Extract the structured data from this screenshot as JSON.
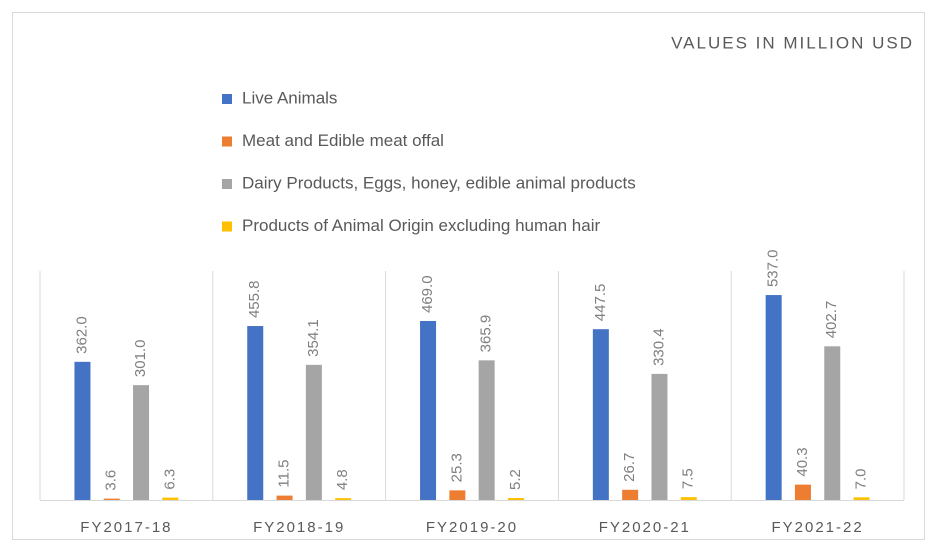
{
  "chart_data": {
    "type": "bar",
    "title": "VALUES IN MILLION USD",
    "categories": [
      "FY2017-18",
      "FY2018-19",
      "FY2019-20",
      "FY2020-21",
      "FY2021-22"
    ],
    "series": [
      {
        "name": "Live Animals",
        "color": "#4472c4",
        "values": [
          362.0,
          455.8,
          469.0,
          447.5,
          537.0
        ],
        "value_labels": [
          "362.0",
          "455.8",
          "469.0",
          "447.5",
          "537.0"
        ]
      },
      {
        "name": "Meat and Edible meat offal",
        "color": "#ed7d31",
        "values": [
          3.6,
          11.5,
          25.3,
          26.7,
          40.3
        ],
        "value_labels": [
          "3.6",
          "11.5",
          "25.3",
          "26.7",
          "40.3"
        ]
      },
      {
        "name": "Dairy Products, Eggs, honey, edible animal products",
        "color": "#a5a5a5",
        "values": [
          301.0,
          354.1,
          365.9,
          330.4,
          402.7
        ],
        "value_labels": [
          "301.0",
          "354.1",
          "365.9",
          "330.4",
          "402.7"
        ]
      },
      {
        "name": "Products of Animal Origin excluding human hair",
        "color": "#ffc000",
        "values": [
          6.3,
          4.8,
          5.2,
          7.5,
          7.0
        ],
        "value_labels": [
          "6.3",
          "4.8",
          "5.2",
          "7.5",
          "7.0"
        ]
      }
    ],
    "ylim": [
      0,
      600
    ],
    "legend": "top"
  }
}
